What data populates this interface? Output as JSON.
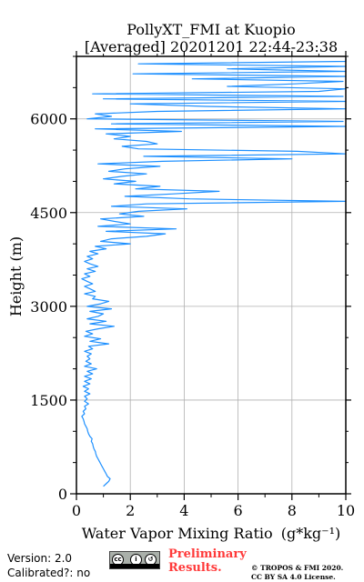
{
  "chart_data": {
    "type": "line",
    "title": "PollyXT_FMI at Kuopio",
    "subtitle": "[Averaged] 20201201 22:44-23:38",
    "xlabel": "Water Vapor Mixing Ratio",
    "xlabel_math": "(g*kg⁻¹)",
    "ylabel": "Height (m)",
    "xlim": [
      0,
      10
    ],
    "ylim": [
      0,
      7000
    ],
    "xticks": [
      0,
      2,
      4,
      6,
      8,
      10
    ],
    "yticks": [
      0,
      1500,
      3000,
      4500,
      6000
    ],
    "grid": true,
    "color": "#1e90ff",
    "series": [
      {
        "points": [
          [
            1.0,
            120
          ],
          [
            1.1,
            160
          ],
          [
            1.2,
            200
          ],
          [
            1.25,
            240
          ],
          [
            1.15,
            280
          ],
          [
            1.1,
            320
          ],
          [
            1.05,
            360
          ],
          [
            1.0,
            400
          ],
          [
            0.95,
            440
          ],
          [
            0.9,
            480
          ],
          [
            0.85,
            520
          ],
          [
            0.8,
            560
          ],
          [
            0.75,
            600
          ],
          [
            0.72,
            640
          ],
          [
            0.7,
            680
          ],
          [
            0.65,
            720
          ],
          [
            0.62,
            760
          ],
          [
            0.6,
            800
          ],
          [
            0.55,
            840
          ],
          [
            0.58,
            880
          ],
          [
            0.5,
            920
          ],
          [
            0.45,
            960
          ],
          [
            0.42,
            1000
          ],
          [
            0.4,
            1040
          ],
          [
            0.35,
            1080
          ],
          [
            0.3,
            1120
          ],
          [
            0.28,
            1160
          ],
          [
            0.25,
            1200
          ],
          [
            0.2,
            1240
          ],
          [
            0.3,
            1280
          ],
          [
            0.25,
            1320
          ],
          [
            0.35,
            1360
          ],
          [
            0.3,
            1400
          ],
          [
            0.45,
            1440
          ],
          [
            0.3,
            1480
          ],
          [
            0.4,
            1520
          ],
          [
            0.3,
            1560
          ],
          [
            0.5,
            1600
          ],
          [
            0.3,
            1640
          ],
          [
            0.45,
            1680
          ],
          [
            0.25,
            1720
          ],
          [
            0.5,
            1760
          ],
          [
            0.3,
            1800
          ],
          [
            0.55,
            1840
          ],
          [
            0.3,
            1880
          ],
          [
            0.6,
            1920
          ],
          [
            0.4,
            1960
          ],
          [
            0.75,
            2000
          ],
          [
            0.3,
            2040
          ],
          [
            0.55,
            2080
          ],
          [
            0.35,
            2120
          ],
          [
            0.5,
            2160
          ],
          [
            0.4,
            2200
          ],
          [
            0.55,
            2240
          ],
          [
            0.3,
            2280
          ],
          [
            0.6,
            2320
          ],
          [
            0.45,
            2360
          ],
          [
            1.2,
            2400
          ],
          [
            0.5,
            2440
          ],
          [
            0.9,
            2480
          ],
          [
            0.3,
            2520
          ],
          [
            0.6,
            2560
          ],
          [
            0.35,
            2600
          ],
          [
            0.8,
            2640
          ],
          [
            1.4,
            2680
          ],
          [
            0.5,
            2720
          ],
          [
            1.1,
            2760
          ],
          [
            0.4,
            2800
          ],
          [
            0.8,
            2840
          ],
          [
            1.0,
            2880
          ],
          [
            0.5,
            2920
          ],
          [
            1.3,
            2960
          ],
          [
            0.4,
            3000
          ],
          [
            0.9,
            3040
          ],
          [
            1.2,
            3080
          ],
          [
            0.6,
            3120
          ],
          [
            0.7,
            3160
          ],
          [
            0.3,
            3200
          ],
          [
            0.7,
            3240
          ],
          [
            0.5,
            3280
          ],
          [
            0.3,
            3320
          ],
          [
            0.6,
            3360
          ],
          [
            0.4,
            3400
          ],
          [
            0.2,
            3440
          ],
          [
            0.5,
            3480
          ],
          [
            0.3,
            3520
          ],
          [
            0.7,
            3560
          ],
          [
            0.4,
            3600
          ],
          [
            0.8,
            3640
          ],
          [
            0.5,
            3680
          ],
          [
            0.3,
            3720
          ],
          [
            0.6,
            3760
          ],
          [
            0.4,
            3800
          ],
          [
            0.8,
            3840
          ],
          [
            0.5,
            3880
          ],
          [
            1.1,
            3920
          ],
          [
            0.7,
            3960
          ],
          [
            2.0,
            4000
          ],
          [
            0.9,
            4040
          ],
          [
            1.3,
            4080
          ],
          [
            2.6,
            4120
          ],
          [
            3.3,
            4160
          ],
          [
            1.1,
            4200
          ],
          [
            3.7,
            4240
          ],
          [
            0.8,
            4280
          ],
          [
            2.0,
            4320
          ],
          [
            1.4,
            4360
          ],
          [
            0.9,
            4400
          ],
          [
            2.5,
            4440
          ],
          [
            1.6,
            4480
          ],
          [
            2.3,
            4520
          ],
          [
            4.1,
            4560
          ],
          [
            1.3,
            4600
          ],
          [
            2.6,
            4640
          ],
          [
            10.0,
            4680
          ],
          [
            4.2,
            4720
          ],
          [
            1.8,
            4760
          ],
          [
            3.6,
            4800
          ],
          [
            5.3,
            4840
          ],
          [
            2.2,
            4880
          ],
          [
            3.1,
            4920
          ],
          [
            1.4,
            4960
          ],
          [
            2.2,
            5000
          ],
          [
            1.0,
            5040
          ],
          [
            1.7,
            5080
          ],
          [
            2.6,
            5120
          ],
          [
            1.2,
            5160
          ],
          [
            1.8,
            5200
          ],
          [
            3.1,
            5240
          ],
          [
            0.8,
            5280
          ],
          [
            3.2,
            5320
          ],
          [
            8.0,
            5360
          ],
          [
            2.5,
            5400
          ],
          [
            10.0,
            5440
          ],
          [
            8.2,
            5480
          ],
          [
            2.3,
            5520
          ],
          [
            1.7,
            5560
          ],
          [
            3.0,
            5600
          ],
          [
            2.6,
            5640
          ],
          [
            1.4,
            5680
          ],
          [
            2.0,
            5720
          ],
          [
            1.1,
            5760
          ],
          [
            3.9,
            5800
          ],
          [
            0.7,
            5840
          ],
          [
            10.0,
            5880
          ],
          [
            1.3,
            5920
          ],
          [
            9.9,
            5960
          ],
          [
            0.4,
            6000
          ],
          [
            1.3,
            6040
          ],
          [
            0.7,
            6080
          ],
          [
            3.0,
            6120
          ],
          [
            10.0,
            6160
          ],
          [
            4.8,
            6200
          ],
          [
            2.0,
            6240
          ],
          [
            10.0,
            6280
          ],
          [
            1.0,
            6320
          ],
          [
            9.9,
            6360
          ],
          [
            0.6,
            6400
          ],
          [
            9.0,
            6440
          ],
          [
            10.0,
            6480
          ],
          [
            5.6,
            6520
          ],
          [
            8.1,
            6560
          ],
          [
            9.9,
            6600
          ],
          [
            4.3,
            6640
          ],
          [
            10.0,
            6680
          ],
          [
            2.1,
            6720
          ],
          [
            10.0,
            6760
          ],
          [
            5.6,
            6800
          ],
          [
            10.0,
            6840
          ],
          [
            2.3,
            6880
          ],
          [
            10.0,
            6920
          ],
          [
            10.0,
            6960
          ]
        ]
      }
    ]
  },
  "footer": {
    "version": "Version: 2.0",
    "calibrated": "Calibrated?: no",
    "preliminary_line1": "Preliminary",
    "preliminary_line2": "Results.",
    "copyright_line1": "© TROPOS & FMI 2020.",
    "copyright_line2": "CC BY SA 4.0 License."
  },
  "license_badge": {
    "icons": [
      "cc-icon",
      "by-icon",
      "sa-icon"
    ]
  }
}
